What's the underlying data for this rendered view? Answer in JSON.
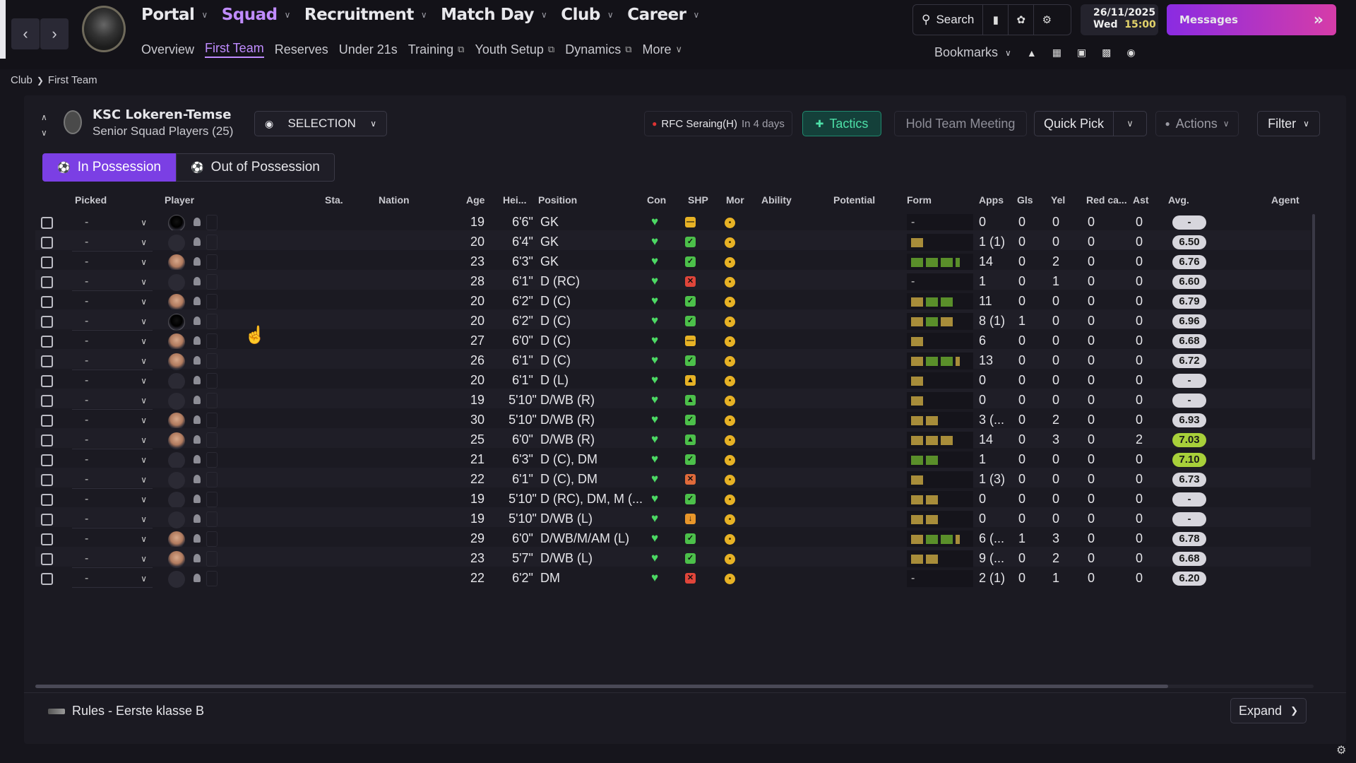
{
  "nav": {
    "main": [
      {
        "label": "Portal",
        "active": false
      },
      {
        "label": "Squad",
        "active": true
      },
      {
        "label": "Recruitment",
        "active": false
      },
      {
        "label": "Match Day",
        "active": false
      },
      {
        "label": "Club",
        "active": false
      },
      {
        "label": "Career",
        "active": false
      }
    ],
    "sub": [
      {
        "label": "Overview",
        "active": false,
        "external": false
      },
      {
        "label": "First Team",
        "active": true,
        "external": false
      },
      {
        "label": "Reserves",
        "active": false,
        "external": false
      },
      {
        "label": "Under 21s",
        "active": false,
        "external": false
      },
      {
        "label": "Training",
        "active": false,
        "external": true
      },
      {
        "label": "Youth Setup",
        "active": false,
        "external": true
      },
      {
        "label": "Dynamics",
        "active": false,
        "external": true
      },
      {
        "label": "More",
        "active": false,
        "external": false
      }
    ]
  },
  "topbar": {
    "search_label": "Search",
    "date": "26/11/2025",
    "day": "Wed",
    "time": "15:00",
    "messages_label": "Messages",
    "bookmarks_label": "Bookmarks"
  },
  "breadcrumb": {
    "root": "Club",
    "current": "First Team"
  },
  "club": {
    "name": "KSC Lokeren-Temse",
    "squad_label": "Senior Squad Players (25)"
  },
  "toolbar": {
    "selection_label": "SELECTION",
    "fixture_team": "RFC Seraing(H)",
    "fixture_when": "In 4 days",
    "tactics_label": "Tactics",
    "meeting_label": "Hold Team Meeting",
    "quickpick_label": "Quick Pick",
    "actions_label": "Actions",
    "filter_label": "Filter"
  },
  "possession": {
    "in_label": "In Possession",
    "out_label": "Out of Possession"
  },
  "columns": {
    "picked": "Picked",
    "player": "Player",
    "sta": "Sta.",
    "nation": "Nation",
    "age": "Age",
    "hei": "Hei...",
    "position": "Position",
    "con": "Con",
    "shp": "SHP",
    "mor": "Mor",
    "ability": "Ability",
    "potential": "Potential",
    "form": "Form",
    "apps": "Apps",
    "gls": "Gls",
    "yel": "Yel",
    "red": "Red ca...",
    "ast": "Ast",
    "avg": "Avg.",
    "agent": "Agent"
  },
  "colors": {
    "accent": "#c08cff",
    "possession_active": "#7b3fe4",
    "tactics": "#4de0a8",
    "form_good": "#5a8f2a",
    "form_avg": "#a88d3a",
    "avg_high": "#a8d03a"
  },
  "players": [
    {
      "picked": "-",
      "face": "silhouette",
      "age": "19",
      "height": "6'6\"",
      "position": "GK",
      "shp": "neutral",
      "form": [],
      "apps": "0",
      "gls": "0",
      "yel": "0",
      "red": "0",
      "ast": "0",
      "avg": "-"
    },
    {
      "picked": "-",
      "face": "blank",
      "age": "20",
      "height": "6'4\"",
      "position": "GK",
      "shp": "good",
      "form": [
        "avg"
      ],
      "apps": "1 (1)",
      "gls": "0",
      "yel": "0",
      "red": "0",
      "ast": "0",
      "avg": "6.50"
    },
    {
      "picked": "-",
      "face": "photo",
      "age": "23",
      "height": "6'3\"",
      "position": "GK",
      "shp": "good",
      "form": [
        "good",
        "good",
        "good",
        "good"
      ],
      "apps": "14",
      "gls": "0",
      "yel": "2",
      "red": "0",
      "ast": "0",
      "avg": "6.76"
    },
    {
      "picked": "-",
      "face": "blank",
      "age": "28",
      "height": "6'1\"",
      "position": "D (RC)",
      "shp": "bad",
      "form": [],
      "apps": "1",
      "gls": "0",
      "yel": "1",
      "red": "0",
      "ast": "0",
      "avg": "6.60"
    },
    {
      "picked": "-",
      "face": "photo",
      "age": "20",
      "height": "6'2\"",
      "position": "D (C)",
      "shp": "good",
      "form": [
        "avg",
        "good",
        "good"
      ],
      "apps": "11",
      "gls": "0",
      "yel": "0",
      "red": "0",
      "ast": "0",
      "avg": "6.79"
    },
    {
      "picked": "-",
      "face": "silhouette",
      "age": "20",
      "height": "6'2\"",
      "position": "D (C)",
      "shp": "good",
      "form": [
        "avg",
        "good",
        "avg"
      ],
      "apps": "8 (1)",
      "gls": "1",
      "yel": "0",
      "red": "0",
      "ast": "0",
      "avg": "6.96"
    },
    {
      "picked": "-",
      "face": "photo",
      "age": "27",
      "height": "6'0\"",
      "position": "D (C)",
      "shp": "neutral",
      "form": [
        "avg"
      ],
      "apps": "6",
      "gls": "0",
      "yel": "0",
      "red": "0",
      "ast": "0",
      "avg": "6.68"
    },
    {
      "picked": "-",
      "face": "photo",
      "age": "26",
      "height": "6'1\"",
      "position": "D (C)",
      "shp": "good",
      "form": [
        "avg",
        "good",
        "good",
        "avg"
      ],
      "apps": "13",
      "gls": "0",
      "yel": "0",
      "red": "0",
      "ast": "0",
      "avg": "6.72"
    },
    {
      "picked": "-",
      "face": "blank",
      "age": "20",
      "height": "6'1\"",
      "position": "D (L)",
      "shp": "up",
      "form": [
        "avg"
      ],
      "apps": "0",
      "gls": "0",
      "yel": "0",
      "red": "0",
      "ast": "0",
      "avg": "-"
    },
    {
      "picked": "-",
      "face": "blank",
      "age": "19",
      "height": "5'10\"",
      "position": "D/WB (R)",
      "shp": "upgood",
      "form": [
        "avg"
      ],
      "apps": "0",
      "gls": "0",
      "yel": "0",
      "red": "0",
      "ast": "0",
      "avg": "-"
    },
    {
      "picked": "-",
      "face": "photo",
      "age": "30",
      "height": "5'10\"",
      "position": "D/WB (R)",
      "shp": "good",
      "form": [
        "avg",
        "avg"
      ],
      "apps": "3 (...",
      "gls": "0",
      "yel": "2",
      "red": "0",
      "ast": "0",
      "avg": "6.93"
    },
    {
      "picked": "-",
      "face": "photo",
      "age": "25",
      "height": "6'0\"",
      "position": "D/WB (R)",
      "shp": "upgood",
      "form": [
        "avg",
        "avg",
        "avg"
      ],
      "apps": "14",
      "gls": "0",
      "yel": "3",
      "red": "0",
      "ast": "2",
      "avg": "7.03"
    },
    {
      "picked": "-",
      "face": "blank",
      "age": "21",
      "height": "6'3\"",
      "position": "D (C), DM",
      "shp": "good",
      "form": [
        "good",
        "good"
      ],
      "apps": "1",
      "gls": "0",
      "yel": "0",
      "red": "0",
      "ast": "0",
      "avg": "7.10"
    },
    {
      "picked": "-",
      "face": "blank",
      "age": "22",
      "height": "6'1\"",
      "position": "D (C), DM",
      "shp": "warn",
      "form": [
        "avg"
      ],
      "apps": "1 (3)",
      "gls": "0",
      "yel": "0",
      "red": "0",
      "ast": "0",
      "avg": "6.73"
    },
    {
      "picked": "-",
      "face": "blank",
      "age": "19",
      "height": "5'10\"",
      "position": "D (RC), DM, M (...",
      "shp": "good",
      "form": [
        "avg",
        "avg"
      ],
      "apps": "0",
      "gls": "0",
      "yel": "0",
      "red": "0",
      "ast": "0",
      "avg": "-"
    },
    {
      "picked": "-",
      "face": "blank",
      "age": "19",
      "height": "5'10\"",
      "position": "D/WB (L)",
      "shp": "orange",
      "form": [
        "avg",
        "avg"
      ],
      "apps": "0",
      "gls": "0",
      "yel": "0",
      "red": "0",
      "ast": "0",
      "avg": "-"
    },
    {
      "picked": "-",
      "face": "photo",
      "age": "29",
      "height": "6'0\"",
      "position": "D/WB/M/AM (L)",
      "shp": "good",
      "form": [
        "avg",
        "good",
        "good",
        "avg"
      ],
      "apps": "6 (...",
      "gls": "1",
      "yel": "3",
      "red": "0",
      "ast": "0",
      "avg": "6.78"
    },
    {
      "picked": "-",
      "face": "photo",
      "age": "23",
      "height": "5'7\"",
      "position": "D/WB (L)",
      "shp": "good",
      "form": [
        "avg",
        "avg"
      ],
      "apps": "9 (...",
      "gls": "0",
      "yel": "2",
      "red": "0",
      "ast": "0",
      "avg": "6.68"
    },
    {
      "picked": "-",
      "face": "blank",
      "age": "22",
      "height": "6'2\"",
      "position": "DM",
      "shp": "bad",
      "form": [],
      "apps": "2 (1)",
      "gls": "0",
      "yel": "1",
      "red": "0",
      "ast": "0",
      "avg": "6.20"
    }
  ],
  "footer": {
    "rules_label": "Rules - Eerste klasse B",
    "expand_label": "Expand"
  }
}
